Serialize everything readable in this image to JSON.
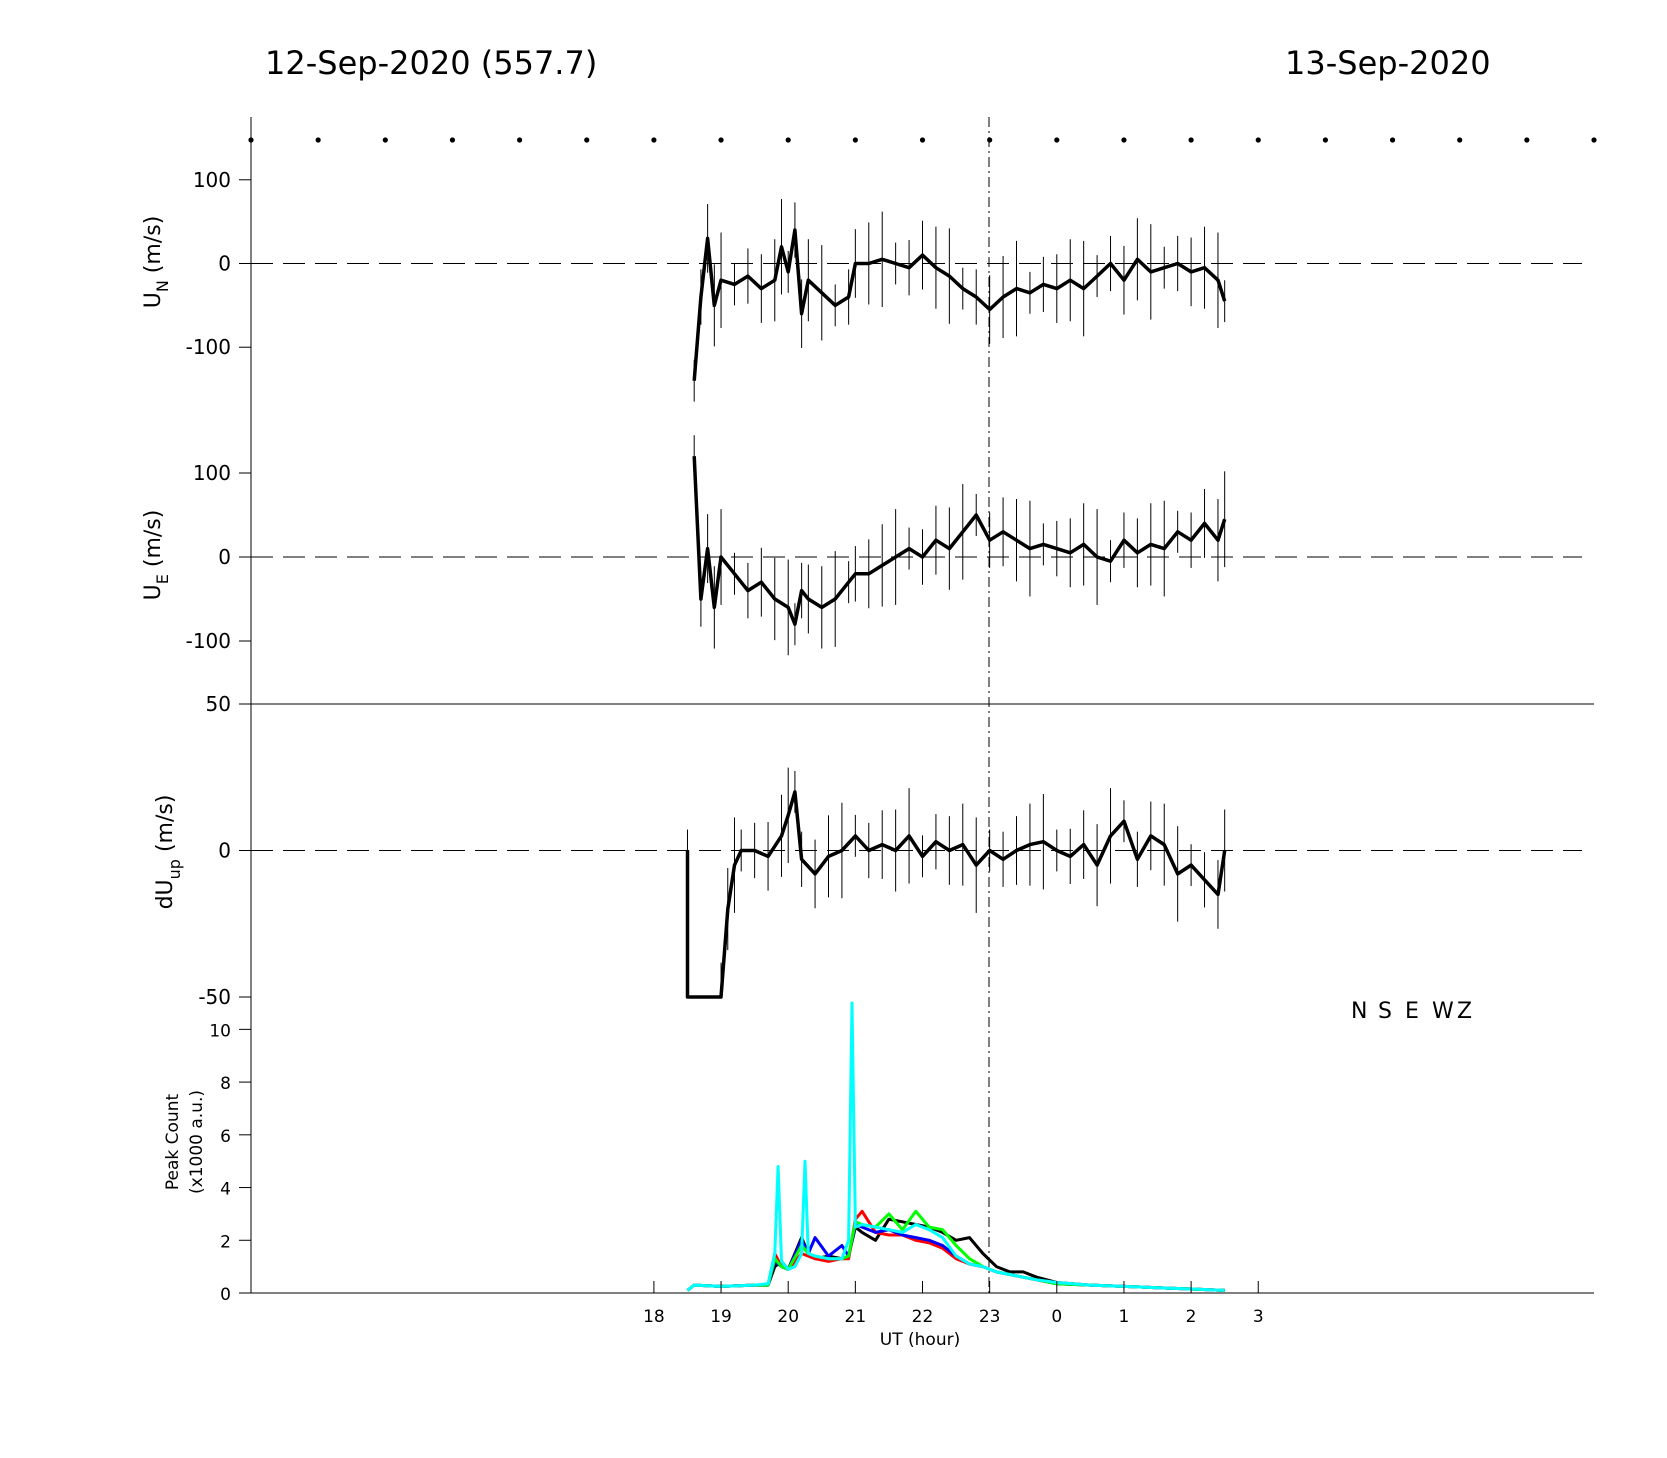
{
  "header": {
    "left_title": "12-Sep-2020 (557.7)",
    "right_title": "13-Sep-2020"
  },
  "chart_data": [
    {
      "type": "line",
      "panel": "UN",
      "ylabel": "U_N (m/s)",
      "ylabel_main": "U",
      "ylabel_sub": "N",
      "ylabel_unit": " (m/s)",
      "ylim": [
        -175,
        175
      ],
      "yticks": [
        "100",
        "0",
        "-100"
      ],
      "ytick_values": [
        100,
        0,
        -100
      ],
      "zero_line": "dashed",
      "error_bars": true,
      "series": [
        {
          "x": [
            18.6,
            18.7,
            18.8,
            18.9,
            19.0,
            19.2,
            19.4,
            19.6,
            19.8,
            19.9,
            20.0,
            20.1,
            20.2,
            20.3,
            20.5,
            20.7,
            20.9,
            21.0,
            21.2,
            21.4,
            21.6,
            21.8,
            22.0,
            22.2,
            22.4,
            22.6,
            22.8,
            23.0,
            23.2,
            23.4,
            23.6,
            23.8,
            24.0,
            24.2,
            24.4,
            24.6,
            24.8,
            25.0,
            25.2,
            25.4,
            25.6,
            25.8,
            26.0,
            26.2,
            26.4,
            26.5
          ],
          "y": [
            -140,
            -40,
            30,
            -50,
            -20,
            -25,
            -15,
            -30,
            -20,
            20,
            -10,
            40,
            -60,
            -20,
            -35,
            -50,
            -40,
            0,
            0,
            5,
            0,
            -5,
            10,
            -5,
            -15,
            -30,
            -40,
            -55,
            -40,
            -30,
            -35,
            -25,
            -30,
            -20,
            -30,
            -15,
            0,
            -20,
            5,
            -10,
            -5,
            0,
            -10,
            -5,
            -20,
            -45
          ]
        }
      ]
    },
    {
      "type": "line",
      "panel": "UE",
      "ylabel": "U_E (m/s)",
      "ylabel_main": "U",
      "ylabel_sub": "E",
      "ylabel_unit": " (m/s)",
      "ylim": [
        -175,
        175
      ],
      "yticks": [
        "100",
        "0",
        "-100"
      ],
      "ytick_values": [
        100,
        0,
        -100
      ],
      "zero_line": "dashed",
      "error_bars": true,
      "series": [
        {
          "x": [
            18.6,
            18.7,
            18.8,
            18.9,
            19.0,
            19.2,
            19.4,
            19.6,
            19.8,
            20.0,
            20.1,
            20.2,
            20.3,
            20.5,
            20.7,
            20.9,
            21.0,
            21.2,
            21.4,
            21.6,
            21.8,
            22.0,
            22.2,
            22.4,
            22.6,
            22.8,
            23.0,
            23.2,
            23.4,
            23.6,
            23.8,
            24.0,
            24.2,
            24.4,
            24.6,
            24.8,
            25.0,
            25.2,
            25.4,
            25.6,
            25.8,
            26.0,
            26.2,
            26.4,
            26.5
          ],
          "y": [
            120,
            -50,
            10,
            -60,
            0,
            -20,
            -40,
            -30,
            -50,
            -60,
            -80,
            -40,
            -50,
            -60,
            -50,
            -30,
            -20,
            -20,
            -10,
            0,
            10,
            0,
            20,
            10,
            30,
            50,
            20,
            30,
            20,
            10,
            15,
            10,
            5,
            15,
            0,
            -5,
            20,
            5,
            15,
            10,
            30,
            20,
            40,
            20,
            45
          ]
        }
      ]
    },
    {
      "type": "line",
      "panel": "dUup",
      "ylabel": "dU_up (m/s)",
      "ylabel_main": "dU",
      "ylabel_sub": "up",
      "ylabel_unit": " (m/s)",
      "ylim": [
        -50,
        50
      ],
      "yticks": [
        "50",
        "0",
        "-50"
      ],
      "ytick_values": [
        50,
        0,
        -50
      ],
      "zero_line": "dashed",
      "error_bars": true,
      "series": [
        {
          "x": [
            18.5,
            18.5,
            19.0,
            19.1,
            19.2,
            19.3,
            19.5,
            19.7,
            19.9,
            20.0,
            20.1,
            20.2,
            20.4,
            20.6,
            20.8,
            21.0,
            21.2,
            21.4,
            21.6,
            21.8,
            22.0,
            22.2,
            22.4,
            22.6,
            22.8,
            23.0,
            23.2,
            23.4,
            23.6,
            23.8,
            24.0,
            24.2,
            24.4,
            24.6,
            24.8,
            25.0,
            25.2,
            25.4,
            25.6,
            25.8,
            26.0,
            26.2,
            26.4,
            26.5
          ],
          "y": [
            0,
            -50,
            -50,
            -20,
            -5,
            0,
            0,
            -2,
            5,
            12,
            20,
            -3,
            -8,
            -2,
            0,
            5,
            0,
            2,
            0,
            5,
            -2,
            3,
            0,
            2,
            -5,
            0,
            -3,
            0,
            2,
            3,
            0,
            -2,
            2,
            -5,
            5,
            10,
            -3,
            5,
            2,
            -8,
            -5,
            -10,
            -15,
            0
          ]
        }
      ]
    },
    {
      "type": "line",
      "panel": "peak_count",
      "ylabel": "Peak Count (x1000 a.u.)",
      "ylabel_line1": "Peak Count",
      "ylabel_line2": "(x1000 a.u.)",
      "xlabel": "UT (hour)",
      "xticks": [
        "18",
        "19",
        "20",
        "21",
        "22",
        "23",
        "0",
        "1",
        "2",
        "3"
      ],
      "xtick_values": [
        18,
        19,
        20,
        21,
        22,
        23,
        24,
        25,
        26,
        27
      ],
      "xlim": [
        12,
        32
      ],
      "ylim": [
        0,
        11
      ],
      "yticks": [
        "10",
        "8",
        "6",
        "4",
        "2",
        "0"
      ],
      "ytick_values": [
        10,
        8,
        6,
        4,
        2,
        0
      ],
      "legend": {
        "placement": "top-right"
      },
      "series": [
        {
          "name": "N",
          "color": "#000000",
          "x": [
            18.5,
            18.6,
            19.0,
            19.5,
            19.7,
            19.8,
            19.9,
            20.0,
            20.2,
            20.3,
            20.4,
            20.6,
            20.8,
            20.9,
            21.0,
            21.1,
            21.3,
            21.5,
            21.7,
            21.9,
            22.1,
            22.3,
            22.5,
            22.7,
            22.9,
            23.1,
            23.3,
            23.5,
            23.7,
            24.0,
            24.5,
            25.0,
            25.5,
            26.0,
            26.5
          ],
          "y": [
            0.1,
            0.3,
            0.25,
            0.3,
            0.3,
            1.0,
            1.2,
            0.9,
            2.1,
            1.5,
            1.3,
            1.4,
            1.3,
            1.4,
            2.5,
            2.3,
            2.0,
            2.8,
            2.7,
            2.6,
            2.5,
            2.3,
            2.0,
            2.1,
            1.5,
            1.0,
            0.8,
            0.8,
            0.6,
            0.4,
            0.3,
            0.25,
            0.2,
            0.15,
            0.1
          ]
        },
        {
          "name": "S",
          "color": "#ff0000",
          "x": [
            18.5,
            18.6,
            19.0,
            19.5,
            19.7,
            19.8,
            19.9,
            20.0,
            20.2,
            20.3,
            20.4,
            20.6,
            20.8,
            20.9,
            21.0,
            21.1,
            21.3,
            21.5,
            21.7,
            21.9,
            22.1,
            22.3,
            22.5,
            22.7,
            22.9,
            23.1,
            23.3,
            23.5,
            23.7,
            24.0,
            24.5,
            25.0,
            25.5,
            26.0,
            26.5
          ],
          "y": [
            0.1,
            0.3,
            0.25,
            0.3,
            0.3,
            1.5,
            1.0,
            0.9,
            1.5,
            1.4,
            1.3,
            1.2,
            1.3,
            1.3,
            2.8,
            3.1,
            2.3,
            2.2,
            2.2,
            2.0,
            1.9,
            1.7,
            1.3,
            1.1,
            1.0,
            0.8,
            0.7,
            0.6,
            0.5,
            0.35,
            0.3,
            0.25,
            0.2,
            0.15,
            0.1
          ]
        },
        {
          "name": "E",
          "color": "#0000ff",
          "x": [
            18.5,
            18.6,
            19.0,
            19.5,
            19.7,
            19.8,
            19.9,
            20.0,
            20.2,
            20.3,
            20.4,
            20.6,
            20.8,
            20.9,
            21.0,
            21.1,
            21.3,
            21.5,
            21.7,
            21.9,
            22.1,
            22.3,
            22.5,
            22.7,
            22.9,
            23.1,
            23.3,
            23.5,
            23.7,
            24.0,
            24.5,
            25.0,
            25.5,
            26.0,
            26.5
          ],
          "y": [
            0.1,
            0.3,
            0.25,
            0.3,
            0.3,
            1.2,
            1.0,
            0.9,
            2.0,
            1.5,
            2.1,
            1.4,
            1.8,
            1.4,
            2.6,
            2.5,
            2.3,
            2.4,
            2.2,
            2.1,
            2.0,
            1.8,
            1.4,
            1.1,
            1.0,
            0.8,
            0.7,
            0.6,
            0.5,
            0.35,
            0.3,
            0.25,
            0.2,
            0.15,
            0.1
          ]
        },
        {
          "name": "W",
          "color": "#00ff00",
          "x": [
            18.5,
            18.6,
            19.0,
            19.5,
            19.7,
            19.8,
            19.9,
            20.0,
            20.2,
            20.3,
            20.4,
            20.6,
            20.8,
            20.9,
            21.0,
            21.1,
            21.3,
            21.5,
            21.7,
            21.9,
            22.1,
            22.3,
            22.5,
            22.7,
            22.9,
            23.1,
            23.3,
            23.5,
            23.7,
            24.0,
            24.5,
            25.0,
            25.5,
            26.0,
            26.5
          ],
          "y": [
            0.1,
            0.3,
            0.25,
            0.3,
            0.3,
            1.3,
            1.0,
            0.9,
            1.8,
            1.5,
            1.4,
            1.3,
            1.3,
            1.4,
            2.7,
            2.6,
            2.5,
            3.0,
            2.4,
            3.1,
            2.5,
            2.4,
            1.8,
            1.3,
            1.0,
            0.8,
            0.7,
            0.6,
            0.5,
            0.35,
            0.3,
            0.25,
            0.2,
            0.15,
            0.1
          ]
        },
        {
          "name": "Z",
          "color": "#00ffff",
          "x": [
            18.5,
            18.6,
            19.0,
            19.5,
            19.7,
            19.8,
            19.85,
            19.9,
            20.0,
            20.1,
            20.2,
            20.25,
            20.3,
            20.4,
            20.6,
            20.8,
            20.9,
            20.95,
            21.0,
            21.1,
            21.3,
            21.5,
            21.7,
            21.9,
            22.1,
            22.3,
            22.5,
            22.7,
            22.9,
            23.1,
            23.3,
            23.5,
            23.7,
            24.0,
            24.5,
            25.0,
            25.5,
            26.0,
            26.5
          ],
          "y": [
            0.1,
            0.3,
            0.25,
            0.3,
            0.35,
            1.5,
            4.8,
            1.2,
            0.9,
            1.0,
            1.5,
            5.0,
            1.5,
            1.4,
            1.3,
            1.3,
            2.0,
            11.0,
            2.5,
            2.6,
            2.5,
            2.4,
            2.3,
            2.6,
            2.4,
            2.1,
            1.4,
            1.1,
            1.0,
            0.8,
            0.7,
            0.6,
            0.5,
            0.4,
            0.3,
            0.25,
            0.2,
            0.15,
            0.1
          ]
        }
      ]
    }
  ]
}
